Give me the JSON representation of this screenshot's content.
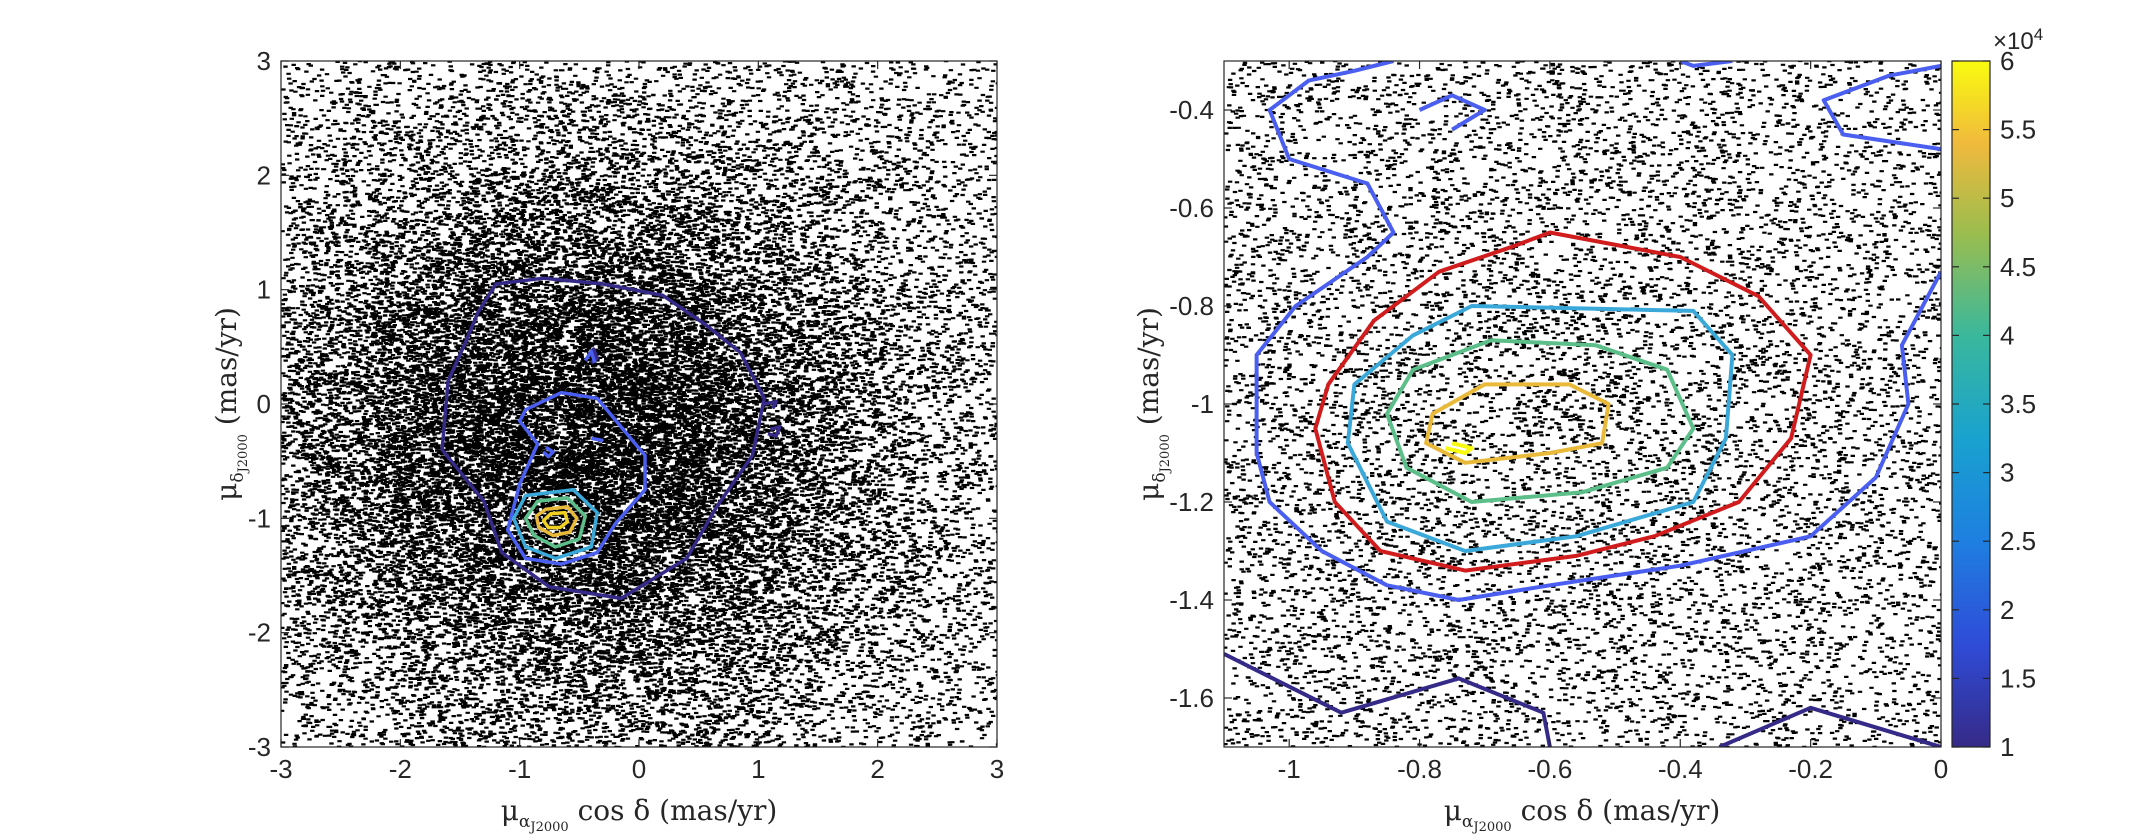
{
  "colors": {
    "points": "#000000",
    "axis": "#262626",
    "colormap": [
      "#352a87",
      "#4a5ef0",
      "#3aa8d8",
      "#5cbf8a",
      "#e9b93a",
      "#f9fb0e"
    ]
  },
  "chart_data": [
    {
      "type": "scatter",
      "subtype": "scatter-with-density-contours",
      "x": {
        "range": [
          -3,
          3
        ],
        "ticks": [
          -3,
          -2,
          -1,
          0,
          1,
          2,
          3
        ],
        "label": "μ_αJ2000 cos δ (mas/yr)",
        "label_main": "μ",
        "label_sub": "α",
        "label_sub2": "J2000",
        "label_rest": " cos δ  (mas/yr)"
      },
      "y": {
        "range": [
          -3,
          3
        ],
        "ticks": [
          -3,
          -2,
          -1,
          0,
          1,
          2,
          3
        ],
        "label": "μ_δJ2000 (mas/yr)",
        "label_main": "μ",
        "label_sub": "δ",
        "label_sub2": "J2000",
        "label_rest": "  (mas/yr)"
      },
      "scatter": {
        "center": [
          -0.45,
          -0.3
        ],
        "spread": [
          1.45,
          1.35
        ],
        "note": "dense field of proper-motion points, densest near center"
      },
      "contours": [
        {
          "level": 10000,
          "color": "#352a87",
          "path": [
            [
              -1.35,
              0.8
            ],
            [
              -1.2,
              1.05
            ],
            [
              -0.8,
              1.1
            ],
            [
              -0.3,
              1.05
            ],
            [
              0.2,
              0.95
            ],
            [
              0.55,
              0.7
            ],
            [
              0.85,
              0.45
            ],
            [
              1.05,
              0.05
            ],
            [
              0.95,
              -0.45
            ],
            [
              0.65,
              -0.9
            ],
            [
              0.4,
              -1.35
            ],
            [
              -0.15,
              -1.7
            ],
            [
              -0.75,
              -1.6
            ],
            [
              -1.15,
              -1.3
            ],
            [
              -1.3,
              -0.85
            ],
            [
              -1.65,
              -0.4
            ],
            [
              -1.6,
              0.2
            ],
            [
              -1.45,
              0.55
            ]
          ]
        },
        {
          "level": 20000,
          "color": "#4a5ef0",
          "path": [
            [
              -0.95,
              -0.05
            ],
            [
              -0.65,
              0.1
            ],
            [
              -0.35,
              0.05
            ],
            [
              -0.15,
              -0.2
            ],
            [
              0.05,
              -0.45
            ],
            [
              0.05,
              -0.75
            ],
            [
              -0.2,
              -1.05
            ],
            [
              -0.35,
              -1.3
            ],
            [
              -0.65,
              -1.4
            ],
            [
              -0.95,
              -1.35
            ],
            [
              -1.1,
              -1.1
            ],
            [
              -1.0,
              -0.7
            ],
            [
              -0.85,
              -0.35
            ],
            [
              -1.0,
              -0.15
            ]
          ]
        },
        {
          "level": 35000,
          "color": "#3aa8d8",
          "path": [
            [
              -0.95,
              -0.8
            ],
            [
              -0.55,
              -0.75
            ],
            [
              -0.35,
              -0.95
            ],
            [
              -0.4,
              -1.25
            ],
            [
              -0.7,
              -1.35
            ],
            [
              -0.95,
              -1.25
            ],
            [
              -1.05,
              -1.0
            ]
          ]
        },
        {
          "level": 40000,
          "color": "#5cbf8a",
          "path": [
            [
              -0.85,
              -0.85
            ],
            [
              -0.6,
              -0.82
            ],
            [
              -0.45,
              -0.98
            ],
            [
              -0.5,
              -1.18
            ],
            [
              -0.7,
              -1.25
            ],
            [
              -0.88,
              -1.15
            ],
            [
              -0.95,
              -1.0
            ]
          ]
        },
        {
          "level": 50000,
          "color": "#e9b93a",
          "path": [
            [
              -0.78,
              -0.92
            ],
            [
              -0.6,
              -0.9
            ],
            [
              -0.52,
              -1.0
            ],
            [
              -0.58,
              -1.12
            ],
            [
              -0.72,
              -1.15
            ],
            [
              -0.84,
              -1.08
            ],
            [
              -0.86,
              -0.98
            ]
          ]
        },
        {
          "level": 55000,
          "color": "#f0d020",
          "path": [
            [
              -0.74,
              -0.96
            ],
            [
              -0.62,
              -0.95
            ],
            [
              -0.6,
              -1.03
            ],
            [
              -0.66,
              -1.08
            ],
            [
              -0.76,
              -1.08
            ],
            [
              -0.8,
              -1.02
            ]
          ]
        },
        {
          "level": 10000,
          "color": "#352a87",
          "path": [
            [
              -0.42,
              0.42
            ],
            [
              -0.38,
              0.48
            ],
            [
              -0.35,
              0.4
            ],
            [
              -0.4,
              0.36
            ]
          ]
        },
        {
          "level": 20000,
          "color": "#4a5ef0",
          "path": [
            [
              -0.45,
              0.38
            ],
            [
              -0.4,
              0.46
            ],
            [
              -0.37,
              0.36
            ]
          ]
        },
        {
          "level": 20000,
          "color": "#4a5ef0",
          "path": [
            [
              -0.78,
              -0.38
            ],
            [
              -0.72,
              -0.42
            ],
            [
              -0.76,
              -0.46
            ],
            [
              -0.8,
              -0.42
            ]
          ]
        },
        {
          "level": 20000,
          "color": "#4a5ef0",
          "path": [
            [
              -0.4,
              -0.3
            ],
            [
              -0.3,
              -0.32
            ]
          ]
        },
        {
          "level": 10000,
          "color": "#352a87",
          "path": [
            [
              1.05,
              0.0
            ],
            [
              1.15,
              0.02
            ],
            [
              1.12,
              -0.04
            ]
          ]
        },
        {
          "level": 10000,
          "color": "#352a87",
          "path": [
            [
              1.1,
              -0.22
            ],
            [
              1.18,
              -0.2
            ],
            [
              1.15,
              -0.28
            ],
            [
              1.08,
              -0.26
            ]
          ]
        }
      ]
    },
    {
      "type": "scatter",
      "subtype": "scatter-with-density-contours",
      "x": {
        "range": [
          -1.1,
          0
        ],
        "ticks": [
          -1,
          -0.8,
          -0.6,
          -0.4,
          -0.2,
          0
        ],
        "label": "μ_αJ2000 cos δ (mas/yr)",
        "label_main": "μ",
        "label_sub": "α",
        "label_sub2": "J2000",
        "label_rest": " cos δ  (mas/yr)"
      },
      "y": {
        "range": [
          -1.7,
          -0.3
        ],
        "ticks": [
          -1.6,
          -1.4,
          -1.2,
          -1,
          -0.8,
          -0.6,
          -0.4
        ],
        "label": "μ_δJ2000 (mas/yr)",
        "label_main": "μ",
        "label_sub": "δ",
        "label_sub2": "J2000",
        "label_rest": "  (mas/yr)"
      },
      "scatter": {
        "center": [
          -0.65,
          -1.1
        ],
        "spread": [
          0.45,
          0.45
        ],
        "note": "zoomed region around the overdensity"
      },
      "colorbar": {
        "range": [
          10000,
          60000
        ],
        "ticks": [
          "1",
          "1.5",
          "2",
          "2.5",
          "3",
          "3.5",
          "4",
          "4.5",
          "5",
          "5.5",
          "6"
        ],
        "multiplier_base": "×10",
        "multiplier_exp": "4"
      },
      "contours": [
        {
          "level": 20000,
          "color": "#4a5ef0",
          "path": [
            [
              -0.84,
              -0.3
            ],
            [
              -0.9,
              -0.32
            ],
            [
              -0.97,
              -0.34
            ],
            [
              -1.03,
              -0.4
            ],
            [
              -1.0,
              -0.5
            ],
            [
              -0.88,
              -0.55
            ],
            [
              -0.84,
              -0.65
            ],
            [
              -0.88,
              -0.7
            ],
            [
              -0.99,
              -0.8
            ],
            [
              -1.05,
              -0.9
            ],
            [
              -1.05,
              -1.1
            ],
            [
              -1.03,
              -1.2
            ],
            [
              -0.95,
              -1.3
            ],
            [
              -0.85,
              -1.37
            ],
            [
              -0.74,
              -1.4
            ],
            [
              -0.6,
              -1.37
            ],
            [
              -0.4,
              -1.33
            ],
            [
              -0.2,
              -1.27
            ],
            [
              -0.1,
              -1.15
            ],
            [
              -0.05,
              -1.0
            ],
            [
              -0.06,
              -0.88
            ],
            [
              0.0,
              -0.73
            ]
          ]
        },
        {
          "level": 20000,
          "color": "#4a5ef0",
          "path": [
            [
              0.0,
              -0.31
            ],
            [
              -0.08,
              -0.33
            ],
            [
              -0.18,
              -0.38
            ],
            [
              -0.15,
              -0.45
            ],
            [
              0.0,
              -0.48
            ]
          ]
        },
        {
          "level": 20000,
          "color": "#4a5ef0",
          "path": [
            [
              -0.4,
              -0.3
            ],
            [
              -0.38,
              -0.31
            ],
            [
              -0.32,
              -0.3
            ]
          ]
        },
        {
          "level": 20000,
          "color": "#4a5ef0",
          "path": [
            [
              -0.8,
              -0.4
            ],
            [
              -0.75,
              -0.37
            ],
            [
              -0.7,
              -0.4
            ],
            [
              -0.75,
              -0.44
            ]
          ]
        },
        {
          "level": 30000,
          "color": "#d01c1c",
          "path": [
            [
              -0.6,
              -0.65
            ],
            [
              -0.4,
              -0.7
            ],
            [
              -0.28,
              -0.78
            ],
            [
              -0.2,
              -0.9
            ],
            [
              -0.23,
              -1.07
            ],
            [
              -0.31,
              -1.2
            ],
            [
              -0.44,
              -1.27
            ],
            [
              -0.56,
              -1.31
            ],
            [
              -0.73,
              -1.34
            ],
            [
              -0.86,
              -1.3
            ],
            [
              -0.93,
              -1.2
            ],
            [
              -0.96,
              -1.05
            ],
            [
              -0.94,
              -0.96
            ],
            [
              -0.87,
              -0.83
            ],
            [
              -0.77,
              -0.73
            ],
            [
              -0.66,
              -0.68
            ]
          ]
        },
        {
          "level": 35000,
          "color": "#3aa8d8",
          "path": [
            [
              -0.72,
              -0.8
            ],
            [
              -0.38,
              -0.81
            ],
            [
              -0.32,
              -0.9
            ],
            [
              -0.33,
              -1.07
            ],
            [
              -0.38,
              -1.2
            ],
            [
              -0.56,
              -1.27
            ],
            [
              -0.73,
              -1.3
            ],
            [
              -0.85,
              -1.24
            ],
            [
              -0.91,
              -1.08
            ],
            [
              -0.9,
              -0.96
            ],
            [
              -0.81,
              -0.86
            ]
          ]
        },
        {
          "level": 40000,
          "color": "#5cbf8a",
          "path": [
            [
              -0.69,
              -0.87
            ],
            [
              -0.53,
              -0.88
            ],
            [
              -0.42,
              -0.93
            ],
            [
              -0.38,
              -1.05
            ],
            [
              -0.42,
              -1.13
            ],
            [
              -0.55,
              -1.18
            ],
            [
              -0.72,
              -1.2
            ],
            [
              -0.82,
              -1.13
            ],
            [
              -0.85,
              -1.02
            ],
            [
              -0.81,
              -0.93
            ]
          ]
        },
        {
          "level": 50000,
          "color": "#e9b93a",
          "path": [
            [
              -0.7,
              -0.96
            ],
            [
              -0.57,
              -0.96
            ],
            [
              -0.51,
              -1.0
            ],
            [
              -0.52,
              -1.08
            ],
            [
              -0.6,
              -1.1
            ],
            [
              -0.73,
              -1.12
            ],
            [
              -0.79,
              -1.08
            ],
            [
              -0.78,
              -1.02
            ]
          ]
        },
        {
          "level": 60000,
          "color": "#f9fb0e",
          "path": [
            [
              -0.75,
              -1.08
            ],
            [
              -0.72,
              -1.09
            ],
            [
              -0.73,
              -1.1
            ],
            [
              -0.76,
              -1.09
            ]
          ]
        },
        {
          "level": 10000,
          "color": "#352a87",
          "path": [
            [
              -1.1,
              -1.51
            ],
            [
              -0.92,
              -1.63
            ],
            [
              -0.74,
              -1.56
            ],
            [
              -0.61,
              -1.63
            ],
            [
              -0.6,
              -1.7
            ]
          ]
        },
        {
          "level": 10000,
          "color": "#352a87",
          "path": [
            [
              -0.34,
              -1.7
            ],
            [
              -0.2,
              -1.62
            ],
            [
              -0.05,
              -1.68
            ],
            [
              0.0,
              -1.7
            ]
          ]
        }
      ]
    }
  ]
}
